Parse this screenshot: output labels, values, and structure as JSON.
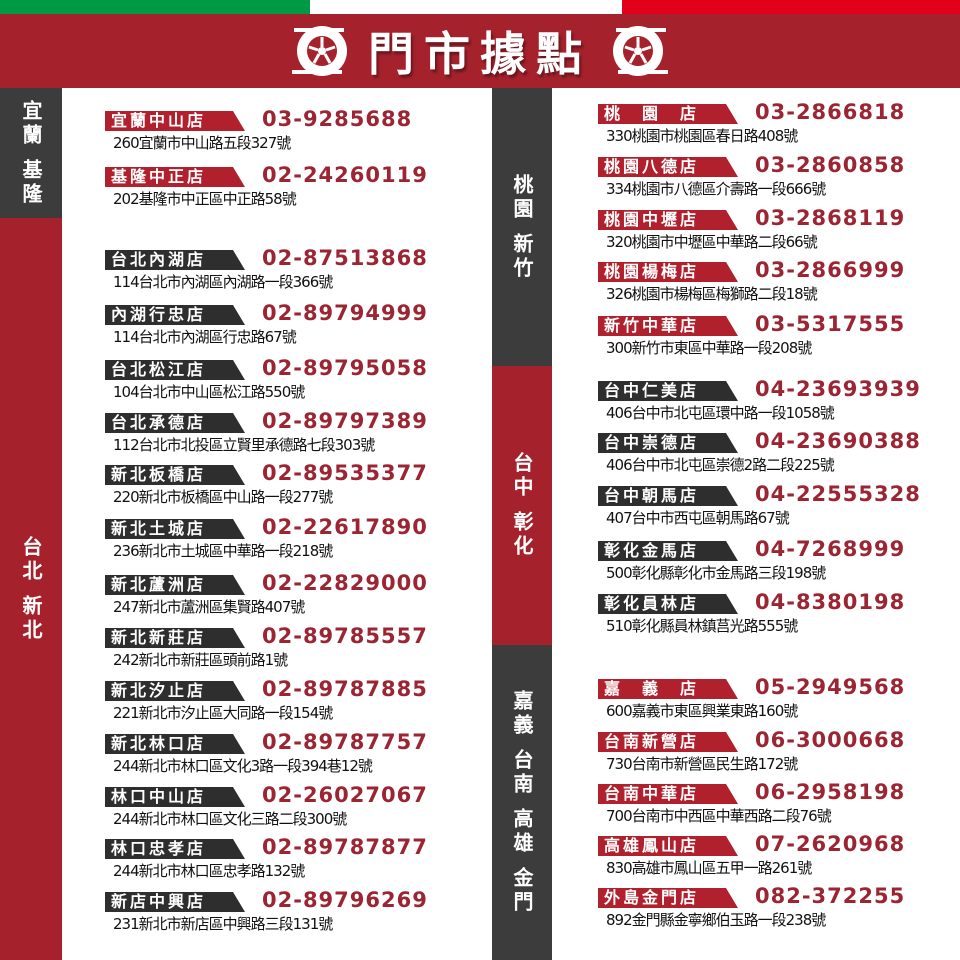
{
  "header": {
    "title": "門市據點",
    "icon": "tire-icon"
  },
  "colors": {
    "red": "#a5212c",
    "dark": "#3c3c3c",
    "phone": "#9b2532",
    "flag_green": "#009a44",
    "flag_red": "#e3001b"
  },
  "regions": [
    {
      "label": "宜蘭 基隆",
      "color": "dark"
    },
    {
      "label": "台北 新北",
      "color": "red"
    },
    {
      "label": "桃園 新竹",
      "color": "dark"
    },
    {
      "label": "台中 彰化",
      "color": "red"
    },
    {
      "label": "嘉義 台南 高雄 金門",
      "color": "dark"
    }
  ],
  "left_stores": [
    {
      "name": "宜蘭中山店",
      "phone": "03-9285688",
      "address": "260宜蘭市中山路五段327號",
      "style": "red"
    },
    {
      "name": "基隆中正店",
      "phone": "02-24260119",
      "address": "202基隆市中正區中正路58號",
      "style": "red"
    },
    {
      "name": "台北內湖店",
      "phone": "02-87513868",
      "address": "114台北市內湖區內湖路一段366號",
      "style": "dark"
    },
    {
      "name": "內湖行忠店",
      "phone": "02-89794999",
      "address": "114台北市內湖區行忠路67號",
      "style": "dark"
    },
    {
      "name": "台北松江店",
      "phone": "02-89795058",
      "address": "104台北市中山區松江路550號",
      "style": "dark"
    },
    {
      "name": "台北承德店",
      "phone": "02-89797389",
      "address": "112台北市北投區立賢里承德路七段303號",
      "style": "dark"
    },
    {
      "name": "新北板橋店",
      "phone": "02-89535377",
      "address": "220新北市板橋區中山路一段277號",
      "style": "dark"
    },
    {
      "name": "新北土城店",
      "phone": "02-22617890",
      "address": "236新北市土城區中華路一段218號",
      "style": "dark"
    },
    {
      "name": "新北蘆洲店",
      "phone": "02-22829000",
      "address": "247新北市蘆洲區集賢路407號",
      "style": "dark"
    },
    {
      "name": "新北新莊店",
      "phone": "02-89785557",
      "address": "242新北市新莊區頭前路1號",
      "style": "dark"
    },
    {
      "name": "新北汐止店",
      "phone": "02-89787885",
      "address": "221新北市汐止區大同路一段154號",
      "style": "dark"
    },
    {
      "name": "新北林口店",
      "phone": "02-89787757",
      "address": "244新北市林口區文化3路一段394巷12號",
      "style": "dark"
    },
    {
      "name": "林口中山店",
      "phone": "02-26027067",
      "address": "244新北市林口區文化三路二段300號",
      "style": "dark"
    },
    {
      "name": "林口忠孝店",
      "phone": "02-89787877",
      "address": "244新北市林口區忠孝路132號",
      "style": "dark"
    },
    {
      "name": "新店中興店",
      "phone": "02-89796269",
      "address": "231新北市新店區中興路三段131號",
      "style": "dark"
    }
  ],
  "right_stores": [
    {
      "name": "桃　園　店",
      "phone": "03-2866818",
      "address": "330桃園市桃園區春日路408號",
      "style": "red"
    },
    {
      "name": "桃園八德店",
      "phone": "03-2860858",
      "address": "334桃園市八德區介壽路一段666號",
      "style": "red"
    },
    {
      "name": "桃園中壢店",
      "phone": "03-2868119",
      "address": "320桃園市中壢區中華路二段66號",
      "style": "red"
    },
    {
      "name": "桃園楊梅店",
      "phone": "03-2866999",
      "address": "326桃園市楊梅區梅獅路二段18號",
      "style": "red"
    },
    {
      "name": "新竹中華店",
      "phone": "03-5317555",
      "address": "300新竹市東區中華路一段208號",
      "style": "red"
    },
    {
      "name": "台中仁美店",
      "phone": "04-23693939",
      "address": "406台中市北屯區環中路一段1058號",
      "style": "dark"
    },
    {
      "name": "台中崇德店",
      "phone": "04-23690388",
      "address": "406台中市北屯區崇德2路二段225號",
      "style": "dark"
    },
    {
      "name": "台中朝馬店",
      "phone": "04-22555328",
      "address": "407台中市西屯區朝馬路67號",
      "style": "dark"
    },
    {
      "name": "彰化金馬店",
      "phone": "04-7268999",
      "address": "500彰化縣彰化市金馬路三段198號",
      "style": "dark"
    },
    {
      "name": "彰化員林店",
      "phone": "04-8380198",
      "address": "510彰化縣員林鎮莒光路555號",
      "style": "dark"
    },
    {
      "name": "嘉　義　店",
      "phone": "05-2949568",
      "address": "600嘉義市東區興業東路160號",
      "style": "red"
    },
    {
      "name": "台南新營店",
      "phone": "06-3000668",
      "address": "730台南市新營區民生路172號",
      "style": "red"
    },
    {
      "name": "台南中華店",
      "phone": "06-2958198",
      "address": "700台南市中西區中華西路二段76號",
      "style": "red"
    },
    {
      "name": "高雄鳳山店",
      "phone": "07-2620968",
      "address": "830高雄市鳳山區五甲一路261號",
      "style": "red"
    },
    {
      "name": "外島金門店",
      "phone": "082-372255",
      "address": "892金門縣金寧鄉伯玉路一段238號",
      "style": "red"
    }
  ]
}
